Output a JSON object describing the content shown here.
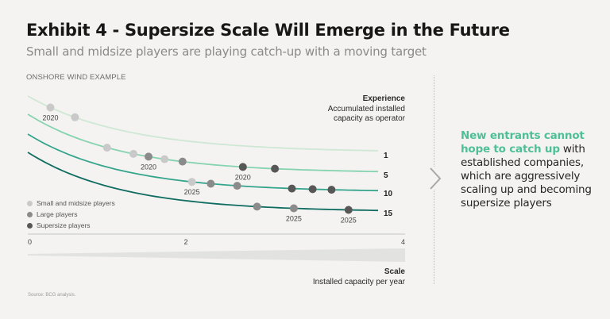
{
  "header": {
    "title": "Exhibit 4 - Supersize Scale Will Emerge in the Future",
    "subtitle": "Small and midsize players are playing catch-up with a moving target",
    "section_label": "ONSHORE WIND EXAMPLE"
  },
  "callout": {
    "highlight": "New entrants cannot hope to catch up",
    "body": "with established companies, which are aggressively scaling up and becoming supersize players"
  },
  "source": "Source: BCG analysis.",
  "colors": {
    "curve_1": "#cfe8d5",
    "curve_5": "#86d3b0",
    "curve_10": "#34a58c",
    "curve_15": "#0f6c60",
    "small_midsize": "#c9c9c9",
    "large": "#8b8b8b",
    "supersize": "#575757"
  },
  "chart_data": {
    "type": "line",
    "title": "Supersize Scale Will Emerge in the Future",
    "xlabel": "Scale",
    "xlabel_sub": "Installed capacity per year",
    "ylabel": "Experience",
    "ylabel_sub": "Accumulated installed capacity as operator",
    "xlim": [
      0,
      4
    ],
    "x_ticks": [
      "0",
      "2",
      "4"
    ],
    "grid": false,
    "legend_position": "bottom-left",
    "legend": [
      {
        "name": "Small and midsize players",
        "key": "small_midsize"
      },
      {
        "name": "Large players",
        "key": "large"
      },
      {
        "name": "Supersize players",
        "key": "supersize"
      }
    ],
    "curves": [
      {
        "label": "1",
        "color_key": "curve_1"
      },
      {
        "label": "5",
        "color_key": "curve_5"
      },
      {
        "label": "10",
        "color_key": "curve_10"
      },
      {
        "label": "15",
        "color_key": "curve_15"
      }
    ],
    "points": [
      {
        "curve": "1",
        "x": 0.24,
        "type": "small_midsize",
        "year": "2020"
      },
      {
        "curve": "1",
        "x": 0.5,
        "type": "small_midsize",
        "year": ""
      },
      {
        "curve": "5",
        "x": 0.84,
        "type": "small_midsize",
        "year": ""
      },
      {
        "curve": "5",
        "x": 1.12,
        "type": "small_midsize",
        "year": ""
      },
      {
        "curve": "5",
        "x": 1.28,
        "type": "large",
        "year": "2020"
      },
      {
        "curve": "5",
        "x": 1.45,
        "type": "small_midsize",
        "year": ""
      },
      {
        "curve": "5",
        "x": 1.64,
        "type": "large",
        "year": ""
      },
      {
        "curve": "5",
        "x": 2.28,
        "type": "supersize",
        "year": "2020"
      },
      {
        "curve": "5",
        "x": 2.62,
        "type": "supersize",
        "year": ""
      },
      {
        "curve": "10",
        "x": 1.74,
        "type": "small_midsize",
        "year": "2025"
      },
      {
        "curve": "10",
        "x": 1.94,
        "type": "large",
        "year": ""
      },
      {
        "curve": "10",
        "x": 2.22,
        "type": "large",
        "year": ""
      },
      {
        "curve": "10",
        "x": 2.8,
        "type": "supersize",
        "year": ""
      },
      {
        "curve": "10",
        "x": 3.02,
        "type": "supersize",
        "year": ""
      },
      {
        "curve": "10",
        "x": 3.22,
        "type": "supersize",
        "year": ""
      },
      {
        "curve": "15",
        "x": 2.43,
        "type": "large",
        "year": ""
      },
      {
        "curve": "15",
        "x": 2.82,
        "type": "large",
        "year": "2025"
      },
      {
        "curve": "15",
        "x": 3.4,
        "type": "supersize",
        "year": "2025"
      }
    ]
  }
}
